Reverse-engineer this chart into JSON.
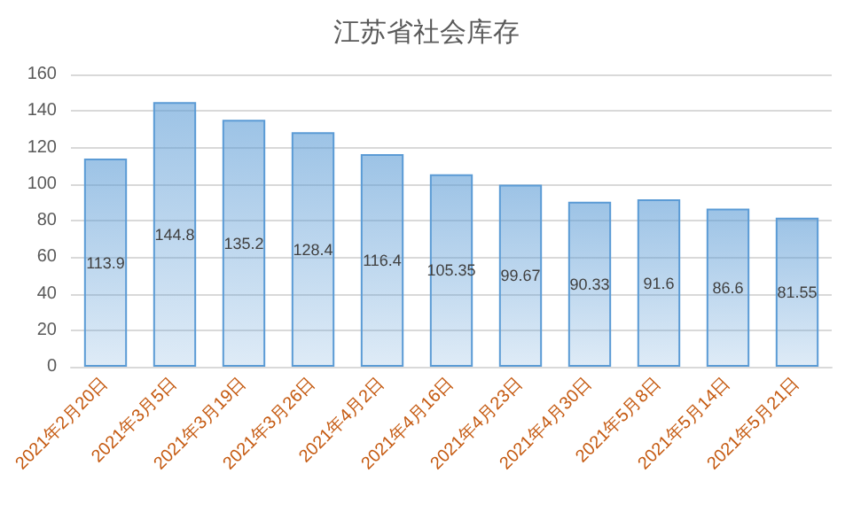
{
  "chart_data": {
    "type": "bar",
    "title": "江苏省社会库存",
    "categories": [
      "2021年2月20日",
      "2021年3月5日",
      "2021年3月19日",
      "2021年3月26日",
      "2021年4月2日",
      "2021年4月16日",
      "2021年4月23日",
      "2021年4月30日",
      "2021年5月8日",
      "2021年5月14日",
      "2021年5月21日"
    ],
    "values": [
      113.9,
      144.8,
      135.2,
      128.4,
      116.4,
      105.35,
      99.67,
      90.33,
      91.6,
      86.6,
      81.55
    ],
    "color": "#5b9bd5",
    "ylim": [
      0,
      160
    ],
    "yticks": [
      0,
      20,
      40,
      60,
      80,
      100,
      120,
      140,
      160
    ],
    "grid": "y",
    "data_labels": true
  }
}
